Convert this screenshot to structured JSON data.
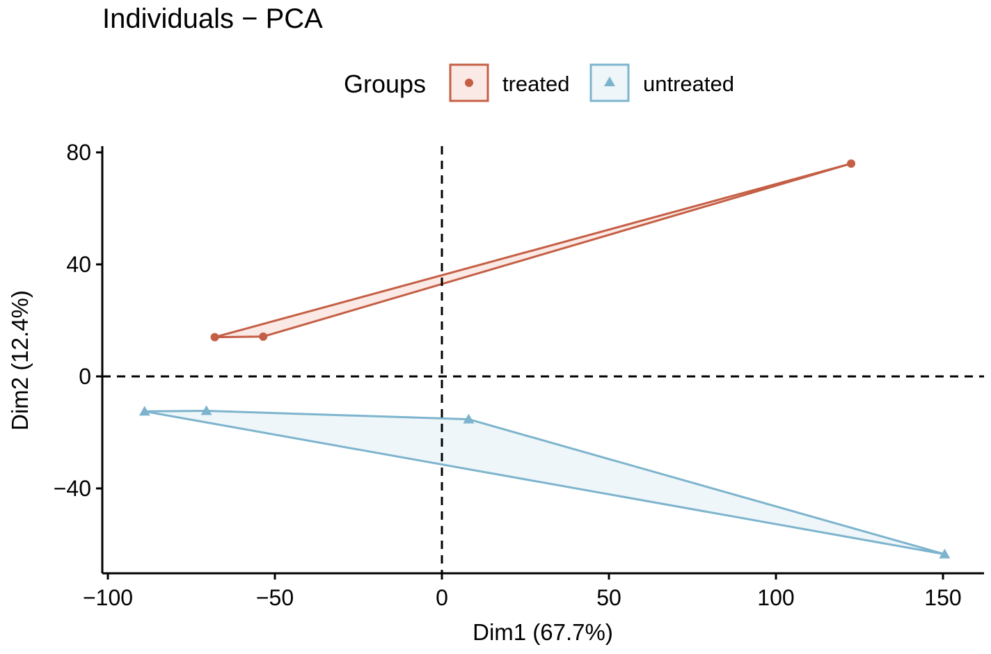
{
  "chart_data": {
    "type": "scatter",
    "title": "Individuals − PCA",
    "xlabel": "Dim1 (67.7%)",
    "ylabel": "Dim2 (12.4%)",
    "xlim": [
      -103,
      160
    ],
    "ylim": [
      -70,
      83
    ],
    "x_ticks": [
      -100,
      -50,
      0,
      50,
      100,
      150
    ],
    "x_tick_labels": [
      "−100",
      "−50",
      "0",
      "50",
      "100",
      "150"
    ],
    "y_ticks": [
      -40,
      0,
      40,
      80
    ],
    "y_tick_labels": [
      "−40",
      "0",
      "40",
      "80"
    ],
    "reference_lines": {
      "x": 0,
      "y": 0,
      "style": "dashed"
    },
    "grid": false,
    "legend": {
      "title": "Groups",
      "placement": "top"
    },
    "series": [
      {
        "name": "treated",
        "color": "#c45f45",
        "fill": "#fbe9e5",
        "marker": "circle",
        "points": [
          [
            -68,
            14
          ],
          [
            -53.5,
            14.2
          ],
          [
            122.5,
            76
          ]
        ],
        "hull": [
          [
            -68,
            14
          ],
          [
            -53.5,
            14.2
          ],
          [
            122.5,
            76
          ]
        ]
      },
      {
        "name": "untreated",
        "color": "#7db4cd",
        "fill": "#eef6f9",
        "marker": "triangle",
        "points": [
          [
            -89,
            -12.5
          ],
          [
            -70.5,
            -12.3
          ],
          [
            8,
            -15.3
          ],
          [
            150.5,
            -63.5
          ]
        ],
        "hull": [
          [
            -89,
            -12.5
          ],
          [
            -70.5,
            -12.3
          ],
          [
            8,
            -15.3
          ],
          [
            150.5,
            -63.5
          ]
        ]
      }
    ]
  }
}
